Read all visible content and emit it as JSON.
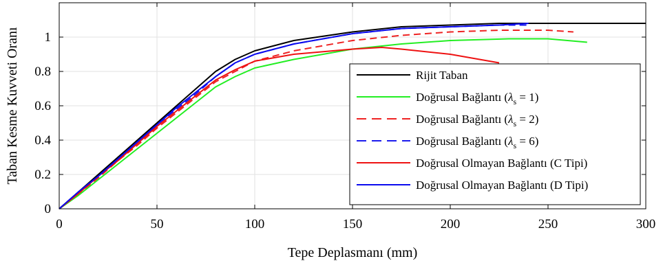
{
  "chart_data": {
    "type": "line",
    "xlabel": "Tepe Deplasmanı (mm)",
    "ylabel": "Taban Kesme Kuvveti Oranı",
    "xlim": [
      0,
      300
    ],
    "ylim": [
      0,
      1.2
    ],
    "xticks": [
      0,
      50,
      100,
      150,
      200,
      250,
      300
    ],
    "xtick_labels": [
      "0",
      "50",
      "100",
      "150",
      "200",
      "250",
      "300"
    ],
    "yticks": [
      0,
      0.2,
      0.4,
      0.6,
      0.8,
      1.0
    ],
    "ytick_labels": [
      "0",
      "0.2",
      "0.4",
      "0.6",
      "0.8",
      "1"
    ],
    "grid": true,
    "legend_position": "bottom-right",
    "series": [
      {
        "name": "Rijit Taban",
        "color": "#000000",
        "dash": "solid",
        "x": [
          0,
          10,
          20,
          30,
          40,
          50,
          60,
          70,
          80,
          90,
          100,
          120,
          150,
          175,
          200,
          225,
          250,
          275,
          300
        ],
        "y": [
          0,
          0.1,
          0.2,
          0.3,
          0.4,
          0.5,
          0.6,
          0.7,
          0.8,
          0.87,
          0.92,
          0.98,
          1.03,
          1.06,
          1.07,
          1.08,
          1.08,
          1.08,
          1.08
        ]
      },
      {
        "name": "Doğrusal Bağlantı (λs = 1)",
        "color": "#22ee22",
        "dash": "solid",
        "x": [
          0,
          10,
          20,
          30,
          40,
          50,
          60,
          70,
          80,
          90,
          100,
          120,
          150,
          175,
          200,
          230,
          250,
          270
        ],
        "y": [
          0,
          0.08,
          0.17,
          0.26,
          0.35,
          0.44,
          0.53,
          0.62,
          0.71,
          0.77,
          0.82,
          0.87,
          0.93,
          0.96,
          0.98,
          0.99,
          0.99,
          0.97
        ]
      },
      {
        "name": "Doğrusal Bağlantı (λs = 2)",
        "color": "#ee2222",
        "dash": "dashed",
        "x": [
          0,
          10,
          20,
          30,
          40,
          50,
          60,
          70,
          80,
          90,
          100,
          120,
          150,
          175,
          200,
          225,
          250,
          263
        ],
        "y": [
          0,
          0.09,
          0.18,
          0.28,
          0.37,
          0.47,
          0.56,
          0.65,
          0.74,
          0.8,
          0.86,
          0.92,
          0.98,
          1.01,
          1.03,
          1.04,
          1.04,
          1.03
        ]
      },
      {
        "name": "Doğrusal Bağlantı (λs = 6)",
        "color": "#1a1aee",
        "dash": "dashed",
        "x": [
          0,
          10,
          20,
          30,
          40,
          50,
          60,
          70,
          80,
          90,
          100,
          120,
          150,
          175,
          200,
          225,
          240
        ],
        "y": [
          0,
          0.1,
          0.19,
          0.29,
          0.39,
          0.49,
          0.58,
          0.67,
          0.77,
          0.85,
          0.9,
          0.96,
          1.02,
          1.05,
          1.06,
          1.07,
          1.07
        ]
      },
      {
        "name": "Doğrusal Olmayan Bağlantı (C Tipi)",
        "color": "#ee1111",
        "dash": "solid",
        "x": [
          0,
          10,
          20,
          30,
          40,
          50,
          60,
          70,
          80,
          90,
          100,
          120,
          140,
          150,
          165,
          175,
          200,
          225
        ],
        "y": [
          0,
          0.09,
          0.19,
          0.28,
          0.38,
          0.48,
          0.57,
          0.66,
          0.75,
          0.81,
          0.86,
          0.9,
          0.92,
          0.93,
          0.94,
          0.93,
          0.9,
          0.85
        ]
      },
      {
        "name": "Doğrusal Olmayan Bağlantı (D Tipi)",
        "color": "#0a0aee",
        "dash": "solid",
        "x": [
          0,
          10,
          20,
          30,
          40,
          50,
          60,
          70,
          80,
          90,
          100,
          120,
          150,
          175,
          200,
          225,
          240
        ],
        "y": [
          0,
          0.1,
          0.19,
          0.29,
          0.39,
          0.49,
          0.59,
          0.68,
          0.77,
          0.85,
          0.9,
          0.96,
          1.02,
          1.05,
          1.06,
          1.07,
          1.08
        ]
      }
    ],
    "legend": [
      {
        "prefix": "Rijit Taban",
        "greek": "",
        "sub": "",
        "suffix": ""
      },
      {
        "prefix": "Doğrusal Bağlantı (",
        "greek": "λ",
        "sub": "s",
        "suffix": " = 1)"
      },
      {
        "prefix": "Doğrusal Bağlantı (",
        "greek": "λ",
        "sub": "s",
        "suffix": " = 2)"
      },
      {
        "prefix": "Doğrusal Bağlantı (",
        "greek": "λ",
        "sub": "s",
        "suffix": " = 6)"
      },
      {
        "prefix": "Doğrusal Olmayan Bağlantı (C Tipi)",
        "greek": "",
        "sub": "",
        "suffix": ""
      },
      {
        "prefix": "Doğrusal Olmayan Bağlantı (D Tipi)",
        "greek": "",
        "sub": "",
        "suffix": ""
      }
    ]
  }
}
